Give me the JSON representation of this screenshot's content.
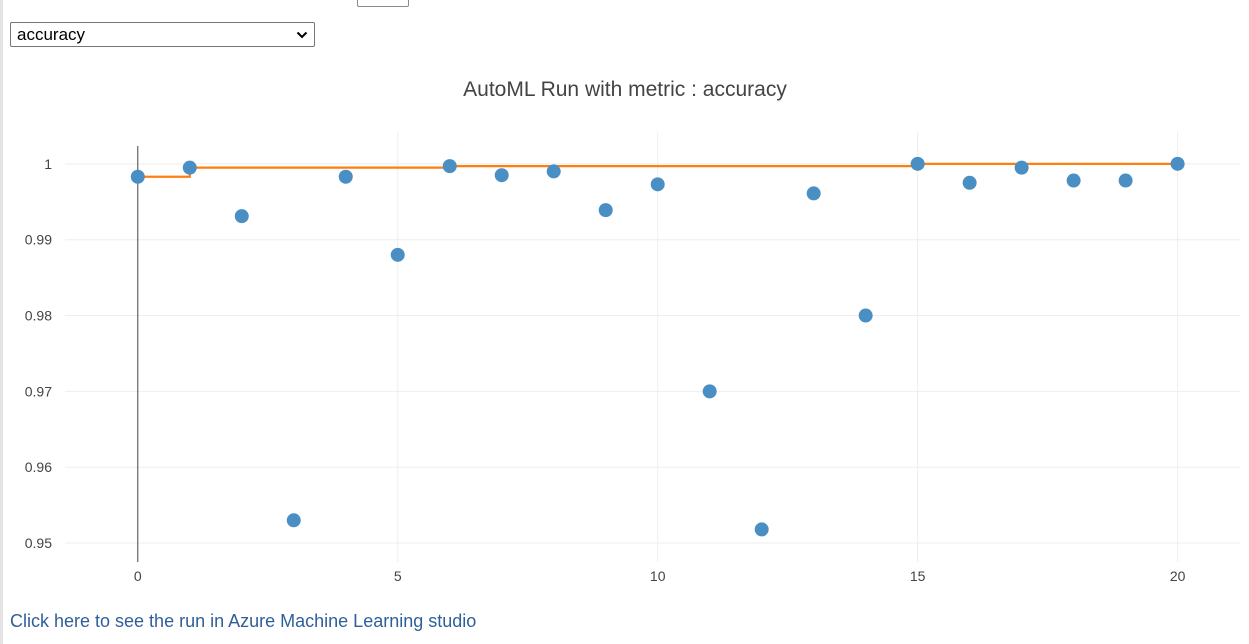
{
  "metric_selector": {
    "selected": "accuracy",
    "icon": "chevron-down-icon"
  },
  "link": {
    "label": "Click here to see the run in Azure Machine Learning studio"
  },
  "chart_data": {
    "type": "scatter",
    "title": "AutoML Run with metric : accuracy",
    "xlabel": "",
    "ylabel": "",
    "xlim": [
      -1.4,
      21.2
    ],
    "ylim": [
      0.9475,
      1.0042
    ],
    "xticks": [
      0,
      5,
      10,
      15,
      20
    ],
    "yticks": [
      0.95,
      0.96,
      0.97,
      0.98,
      0.99,
      1
    ],
    "ytick_labels": [
      "0.95",
      "0.96",
      "0.97",
      "0.98",
      "0.99",
      "1"
    ],
    "grid": true,
    "legend": "none",
    "colors": {
      "points": "#4a8fc4",
      "best_line": "#ff7f0e",
      "grid": "#eeeeee",
      "text": "#444444"
    },
    "series": [
      {
        "type": "scatter",
        "x": [
          0,
          1,
          2,
          3,
          4,
          5,
          6,
          7,
          8,
          9,
          10,
          11,
          12,
          13,
          14,
          15,
          16,
          17,
          18,
          19,
          20
        ],
        "y": [
          0.9983,
          0.9995,
          0.9931,
          0.953,
          0.9983,
          0.988,
          0.9997,
          0.9985,
          0.999,
          0.9939,
          0.9973,
          0.97,
          0.9518,
          0.9961,
          0.98,
          1.0,
          0.9975,
          0.9995,
          0.9978,
          0.9978,
          1.0
        ]
      },
      {
        "type": "step",
        "x": [
          0,
          1,
          2,
          3,
          4,
          5,
          6,
          7,
          8,
          9,
          10,
          11,
          12,
          13,
          14,
          15,
          16,
          17,
          18,
          19,
          20
        ],
        "y": [
          0.9983,
          0.9995,
          0.9995,
          0.9995,
          0.9995,
          0.9995,
          0.9997,
          0.9997,
          0.9997,
          0.9997,
          0.9997,
          0.9997,
          0.9997,
          0.9997,
          0.9997,
          1.0,
          1.0,
          1.0,
          1.0,
          1.0,
          1.0
        ]
      }
    ]
  }
}
